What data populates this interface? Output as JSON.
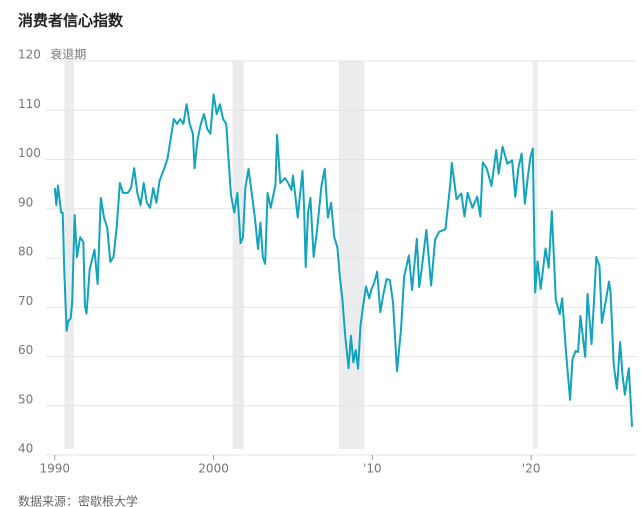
{
  "chart_data": {
    "type": "line",
    "title": "消费者信心指数",
    "recession_label": "衰退期",
    "source": "数据来源：密歇根大学",
    "color": "#12a4bd",
    "recession_color": "#ebecee",
    "grid": true,
    "xlim": [
      1989.7,
      2026.6
    ],
    "ylim": [
      40,
      120
    ],
    "xticks": [
      1990,
      2000,
      {
        "value": 2010,
        "label": "'10"
      },
      {
        "value": 2020,
        "label": "'20"
      }
    ],
    "yticks": [
      40,
      50,
      60,
      70,
      80,
      90,
      100,
      110,
      120
    ],
    "recessions": [
      [
        1990.6,
        1991.2
      ],
      [
        2001.2,
        2001.9
      ],
      [
        2007.9,
        2009.5
      ],
      [
        2020.1,
        2020.4
      ]
    ],
    "x": [
      1990.0,
      1990.1,
      1990.2,
      1990.4,
      1990.5,
      1990.6,
      1990.75,
      1990.85,
      1991.0,
      1991.1,
      1991.25,
      1991.4,
      1991.6,
      1991.8,
      1991.9,
      1992.0,
      1992.2,
      1992.5,
      1992.7,
      1992.9,
      1993.1,
      1993.3,
      1993.5,
      1993.7,
      1993.9,
      1994.1,
      1994.3,
      1994.6,
      1994.8,
      1995.0,
      1995.2,
      1995.4,
      1995.6,
      1995.8,
      1996.0,
      1996.2,
      1996.4,
      1996.6,
      1996.9,
      1997.1,
      1997.3,
      1997.5,
      1997.7,
      1997.9,
      1998.1,
      1998.3,
      1998.5,
      1998.7,
      1998.8,
      1999.0,
      1999.2,
      1999.4,
      1999.6,
      1999.8,
      2000.0,
      2000.2,
      2000.4,
      2000.6,
      2000.8,
      2000.95,
      2001.1,
      2001.3,
      2001.5,
      2001.7,
      2001.85,
      2002.0,
      2002.2,
      2002.4,
      2002.6,
      2002.8,
      2002.95,
      2003.1,
      2003.25,
      2003.4,
      2003.6,
      2003.9,
      2004.0,
      2004.2,
      2004.5,
      2004.7,
      2004.9,
      2005.0,
      2005.3,
      2005.6,
      2005.7,
      2005.8,
      2005.95,
      2006.1,
      2006.3,
      2006.5,
      2006.8,
      2007.0,
      2007.2,
      2007.4,
      2007.6,
      2007.8,
      2007.95,
      2008.1,
      2008.3,
      2008.5,
      2008.65,
      2008.8,
      2008.95,
      2009.1,
      2009.25,
      2009.4,
      2009.6,
      2009.8,
      2009.95,
      2010.1,
      2010.3,
      2010.5,
      2010.7,
      2010.9,
      2011.1,
      2011.3,
      2011.55,
      2011.8,
      2012.0,
      2012.3,
      2012.5,
      2012.8,
      2012.95,
      2013.1,
      2013.4,
      2013.7,
      2013.95,
      2014.2,
      2014.6,
      2014.9,
      2015.0,
      2015.3,
      2015.6,
      2015.8,
      2016.0,
      2016.3,
      2016.6,
      2016.8,
      2016.95,
      2017.2,
      2017.5,
      2017.8,
      2017.95,
      2018.2,
      2018.5,
      2018.8,
      2019.0,
      2019.2,
      2019.4,
      2019.6,
      2019.8,
      2019.95,
      2020.1,
      2020.25,
      2020.4,
      2020.6,
      2020.9,
      2021.1,
      2021.3,
      2021.55,
      2021.8,
      2021.95,
      2022.2,
      2022.45,
      2022.6,
      2022.8,
      2022.95,
      2023.1,
      2023.4,
      2023.55,
      2023.8,
      2023.95,
      2024.1,
      2024.3,
      2024.45,
      2024.7,
      2024.9,
      2025.0,
      2025.2,
      2025.4,
      2025.6,
      2025.75,
      2025.9,
      2026.0,
      2026.15,
      2026.35
    ],
    "values": [
      93,
      89.5,
      93.5,
      88,
      88,
      76,
      64,
      66,
      66.5,
      70,
      87.5,
      79,
      83,
      82,
      69,
      67.5,
      76.5,
      80.5,
      73.5,
      91,
      87,
      85,
      78,
      79,
      85,
      94,
      92,
      92,
      93,
      97,
      92,
      89.5,
      94,
      90,
      89,
      93,
      90,
      94.5,
      97,
      99,
      103,
      107,
      106,
      107,
      106,
      110,
      106,
      104,
      97,
      103,
      106,
      108,
      105,
      104,
      112,
      108,
      110,
      107,
      106,
      98.4,
      91.5,
      88,
      92,
      81.8,
      83,
      93,
      96.9,
      92,
      87,
      80.6,
      86,
      79,
      77.6,
      92,
      89,
      93.7,
      103.8,
      94,
      95,
      94,
      92.6,
      95.5,
      87,
      96.5,
      89,
      76.9,
      88,
      91,
      79,
      84,
      93.6,
      96.9,
      87,
      90,
      83,
      80.9,
      75,
      70.8,
      62.6,
      56.4,
      63,
      57.6,
      60.1,
      56.3,
      65,
      68.7,
      73,
      70.6,
      72.5,
      73.6,
      76,
      67.8,
      71.6,
      74.5,
      74.3,
      69.8,
      55.8,
      64.1,
      75,
      79.3,
      72.3,
      82.7,
      72.9,
      76.4,
      84.5,
      73.2,
      82.5,
      84.1,
      84.6,
      93.6,
      98.1,
      90.7,
      91.9,
      87.2,
      92,
      89,
      91.2,
      87.2,
      98.2,
      97,
      93.4,
      100.7,
      95.9,
      101.4,
      97.9,
      98.6,
      91.2,
      97.2,
      100,
      89.8,
      95.5,
      99.3,
      101,
      71.8,
      78.1,
      72.5,
      80.7,
      76.8,
      88.3,
      70.3,
      67.4,
      70.6,
      59.4,
      50,
      58.2,
      59.9,
      59.7,
      67,
      58.7,
      71.5,
      61.3,
      69.7,
      79,
      77.2,
      65.6,
      70.1,
      74,
      71.7,
      57,
      52.2,
      61.7,
      55.1,
      51,
      53.3,
      56.4,
      44.5
    ]
  }
}
